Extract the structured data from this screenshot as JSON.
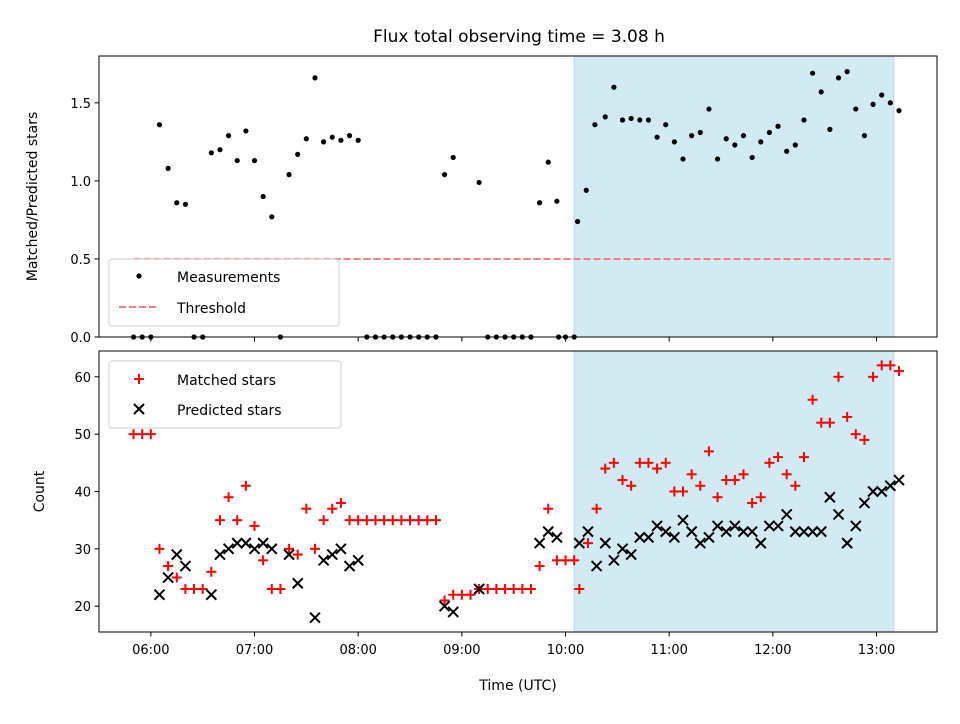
{
  "chart_data": [
    {
      "type": "scatter",
      "title": "Flux total observing time = 3.08 h",
      "ylabel": "Matched/Predicted stars",
      "xlim": [
        "05:30",
        "13:35"
      ],
      "ylim": [
        0,
        1.8
      ],
      "yticks": [
        "0.0",
        "0.5",
        "1.0",
        "1.5"
      ],
      "grid": false,
      "legend_position": "lower-left",
      "highlight_span": {
        "start": "10:05",
        "end": "13:10",
        "color": "#add8e6"
      },
      "threshold": {
        "name": "Threshold",
        "y": 0.5,
        "x_start": "05:50",
        "x_end": "13:10",
        "color": "#f08080"
      },
      "series": [
        {
          "name": "Measurements",
          "color": "#000000",
          "marker": "dot",
          "points": [
            [
              "05:50",
              0
            ],
            [
              "05:55",
              0
            ],
            [
              "06:00",
              0
            ],
            [
              "06:05",
              1.36
            ],
            [
              "06:10",
              1.08
            ],
            [
              "06:15",
              0.86
            ],
            [
              "06:20",
              0.85
            ],
            [
              "06:25",
              0
            ],
            [
              "06:30",
              0
            ],
            [
              "06:35",
              1.18
            ],
            [
              "06:40",
              1.2
            ],
            [
              "06:45",
              1.29
            ],
            [
              "06:50",
              1.13
            ],
            [
              "06:55",
              1.32
            ],
            [
              "07:00",
              1.13
            ],
            [
              "07:05",
              0.9
            ],
            [
              "07:10",
              0.77
            ],
            [
              "07:15",
              0
            ],
            [
              "07:20",
              1.04
            ],
            [
              "07:25",
              1.17
            ],
            [
              "07:30",
              1.27
            ],
            [
              "07:35",
              1.66
            ],
            [
              "07:40",
              1.25
            ],
            [
              "07:45",
              1.28
            ],
            [
              "07:50",
              1.26
            ],
            [
              "07:55",
              1.29
            ],
            [
              "08:00",
              1.26
            ],
            [
              "08:05",
              0
            ],
            [
              "08:10",
              0
            ],
            [
              "08:15",
              0
            ],
            [
              "08:20",
              0
            ],
            [
              "08:25",
              0
            ],
            [
              "08:30",
              0
            ],
            [
              "08:35",
              0
            ],
            [
              "08:40",
              0
            ],
            [
              "08:45",
              0
            ],
            [
              "08:50",
              1.04
            ],
            [
              "08:55",
              1.15
            ],
            [
              "09:10",
              0.99
            ],
            [
              "09:15",
              0
            ],
            [
              "09:20",
              0
            ],
            [
              "09:25",
              0
            ],
            [
              "09:30",
              0
            ],
            [
              "09:35",
              0
            ],
            [
              "09:40",
              0
            ],
            [
              "09:45",
              0.86
            ],
            [
              "09:50",
              1.12
            ],
            [
              "09:55",
              0.87
            ],
            [
              "09:56",
              0
            ],
            [
              "10:00",
              0
            ],
            [
              "10:05",
              0
            ],
            [
              "10:07",
              0.74
            ],
            [
              "10:12",
              0.94
            ],
            [
              "10:17",
              1.36
            ],
            [
              "10:23",
              1.41
            ],
            [
              "10:28",
              1.6
            ],
            [
              "10:33",
              1.39
            ],
            [
              "10:38",
              1.4
            ],
            [
              "10:43",
              1.39
            ],
            [
              "10:48",
              1.39
            ],
            [
              "10:53",
              1.28
            ],
            [
              "10:58",
              1.36
            ],
            [
              "11:03",
              1.25
            ],
            [
              "11:08",
              1.14
            ],
            [
              "11:13",
              1.29
            ],
            [
              "11:18",
              1.31
            ],
            [
              "11:23",
              1.46
            ],
            [
              "11:28",
              1.14
            ],
            [
              "11:33",
              1.27
            ],
            [
              "11:38",
              1.23
            ],
            [
              "11:43",
              1.29
            ],
            [
              "11:48",
              1.15
            ],
            [
              "11:53",
              1.25
            ],
            [
              "11:58",
              1.31
            ],
            [
              "12:03",
              1.35
            ],
            [
              "12:08",
              1.19
            ],
            [
              "12:13",
              1.23
            ],
            [
              "12:18",
              1.39
            ],
            [
              "12:23",
              1.69
            ],
            [
              "12:28",
              1.57
            ],
            [
              "12:33",
              1.33
            ],
            [
              "12:38",
              1.66
            ],
            [
              "12:43",
              1.7
            ],
            [
              "12:48",
              1.46
            ],
            [
              "12:53",
              1.29
            ],
            [
              "12:58",
              1.49
            ],
            [
              "13:03",
              1.55
            ],
            [
              "13:08",
              1.5
            ],
            [
              "13:13",
              1.45
            ]
          ]
        }
      ]
    },
    {
      "type": "scatter",
      "xlabel": "Time (UTC)",
      "ylabel": "Count",
      "xlim": [
        "05:30",
        "13:35"
      ],
      "xticks": [
        "06:00",
        "07:00",
        "08:00",
        "09:00",
        "10:00",
        "11:00",
        "12:00",
        "13:00"
      ],
      "ylim": [
        15.5,
        64.5
      ],
      "yticks": [
        "20",
        "30",
        "40",
        "50",
        "60"
      ],
      "grid": false,
      "legend_position": "upper-left",
      "highlight_span": {
        "start": "10:05",
        "end": "13:10",
        "color": "#add8e6"
      },
      "series": [
        {
          "name": "Matched stars",
          "color": "#ff0000",
          "marker": "plus",
          "points": [
            [
              "05:50",
              50
            ],
            [
              "05:55",
              50
            ],
            [
              "06:00",
              50
            ],
            [
              "06:05",
              30
            ],
            [
              "06:10",
              27
            ],
            [
              "06:15",
              25
            ],
            [
              "06:20",
              23
            ],
            [
              "06:25",
              23
            ],
            [
              "06:30",
              23
            ],
            [
              "06:35",
              26
            ],
            [
              "06:40",
              35
            ],
            [
              "06:45",
              39
            ],
            [
              "06:50",
              35
            ],
            [
              "06:55",
              41
            ],
            [
              "07:00",
              34
            ],
            [
              "07:05",
              28
            ],
            [
              "07:10",
              23
            ],
            [
              "07:15",
              23
            ],
            [
              "07:20",
              30
            ],
            [
              "07:25",
              29
            ],
            [
              "07:30",
              37
            ],
            [
              "07:35",
              30
            ],
            [
              "07:40",
              35
            ],
            [
              "07:45",
              37
            ],
            [
              "07:50",
              38
            ],
            [
              "07:55",
              35
            ],
            [
              "08:00",
              35
            ],
            [
              "08:05",
              35
            ],
            [
              "08:10",
              35
            ],
            [
              "08:15",
              35
            ],
            [
              "08:20",
              35
            ],
            [
              "08:25",
              35
            ],
            [
              "08:30",
              35
            ],
            [
              "08:35",
              35
            ],
            [
              "08:40",
              35
            ],
            [
              "08:45",
              35
            ],
            [
              "08:50",
              21
            ],
            [
              "08:55",
              22
            ],
            [
              "09:00",
              22
            ],
            [
              "09:05",
              22
            ],
            [
              "09:10",
              23
            ],
            [
              "09:15",
              23
            ],
            [
              "09:20",
              23
            ],
            [
              "09:25",
              23
            ],
            [
              "09:30",
              23
            ],
            [
              "09:35",
              23
            ],
            [
              "09:40",
              23
            ],
            [
              "09:45",
              27
            ],
            [
              "09:50",
              37
            ],
            [
              "09:55",
              28
            ],
            [
              "10:00",
              28
            ],
            [
              "10:05",
              28
            ],
            [
              "10:08",
              23
            ],
            [
              "10:13",
              31
            ],
            [
              "10:18",
              37
            ],
            [
              "10:23",
              44
            ],
            [
              "10:28",
              45
            ],
            [
              "10:33",
              42
            ],
            [
              "10:38",
              41
            ],
            [
              "10:43",
              45
            ],
            [
              "10:48",
              45
            ],
            [
              "10:53",
              44
            ],
            [
              "10:58",
              45
            ],
            [
              "11:03",
              40
            ],
            [
              "11:08",
              40
            ],
            [
              "11:13",
              43
            ],
            [
              "11:18",
              41
            ],
            [
              "11:23",
              47
            ],
            [
              "11:28",
              39
            ],
            [
              "11:33",
              42
            ],
            [
              "11:38",
              42
            ],
            [
              "11:43",
              43
            ],
            [
              "11:48",
              38
            ],
            [
              "11:53",
              39
            ],
            [
              "11:58",
              45
            ],
            [
              "12:03",
              46
            ],
            [
              "12:08",
              43
            ],
            [
              "12:13",
              41
            ],
            [
              "12:18",
              46
            ],
            [
              "12:23",
              56
            ],
            [
              "12:28",
              52
            ],
            [
              "12:33",
              52
            ],
            [
              "12:38",
              60
            ],
            [
              "12:43",
              53
            ],
            [
              "12:48",
              50
            ],
            [
              "12:53",
              49
            ],
            [
              "12:58",
              60
            ],
            [
              "13:03",
              62
            ],
            [
              "13:08",
              62
            ],
            [
              "13:13",
              61
            ]
          ]
        },
        {
          "name": "Predicted stars",
          "color": "#000000",
          "marker": "x",
          "points": [
            [
              "06:05",
              22
            ],
            [
              "06:10",
              25
            ],
            [
              "06:15",
              29
            ],
            [
              "06:20",
              27
            ],
            [
              "06:35",
              22
            ],
            [
              "06:40",
              29
            ],
            [
              "06:45",
              30
            ],
            [
              "06:50",
              31
            ],
            [
              "06:55",
              31
            ],
            [
              "07:00",
              30
            ],
            [
              "07:05",
              31
            ],
            [
              "07:10",
              30
            ],
            [
              "07:20",
              29
            ],
            [
              "07:25",
              24
            ],
            [
              "07:35",
              18
            ],
            [
              "07:40",
              28
            ],
            [
              "07:45",
              29
            ],
            [
              "07:50",
              30
            ],
            [
              "07:55",
              27
            ],
            [
              "08:00",
              28
            ],
            [
              "08:50",
              20
            ],
            [
              "08:55",
              19
            ],
            [
              "09:10",
              23
            ],
            [
              "09:45",
              31
            ],
            [
              "09:50",
              33
            ],
            [
              "09:55",
              32
            ],
            [
              "10:08",
              31
            ],
            [
              "10:13",
              33
            ],
            [
              "10:18",
              27
            ],
            [
              "10:23",
              31
            ],
            [
              "10:28",
              28
            ],
            [
              "10:33",
              30
            ],
            [
              "10:38",
              29
            ],
            [
              "10:43",
              32
            ],
            [
              "10:48",
              32
            ],
            [
              "10:53",
              34
            ],
            [
              "10:58",
              33
            ],
            [
              "11:03",
              32
            ],
            [
              "11:08",
              35
            ],
            [
              "11:13",
              33
            ],
            [
              "11:18",
              31
            ],
            [
              "11:23",
              32
            ],
            [
              "11:28",
              34
            ],
            [
              "11:33",
              33
            ],
            [
              "11:38",
              34
            ],
            [
              "11:43",
              33
            ],
            [
              "11:48",
              33
            ],
            [
              "11:53",
              31
            ],
            [
              "11:58",
              34
            ],
            [
              "12:03",
              34
            ],
            [
              "12:08",
              36
            ],
            [
              "12:13",
              33
            ],
            [
              "12:18",
              33
            ],
            [
              "12:23",
              33
            ],
            [
              "12:28",
              33
            ],
            [
              "12:33",
              39
            ],
            [
              "12:38",
              36
            ],
            [
              "12:43",
              31
            ],
            [
              "12:48",
              34
            ],
            [
              "12:53",
              38
            ],
            [
              "12:58",
              40
            ],
            [
              "13:03",
              40
            ],
            [
              "13:08",
              41
            ],
            [
              "13:13",
              42
            ]
          ]
        }
      ]
    }
  ]
}
